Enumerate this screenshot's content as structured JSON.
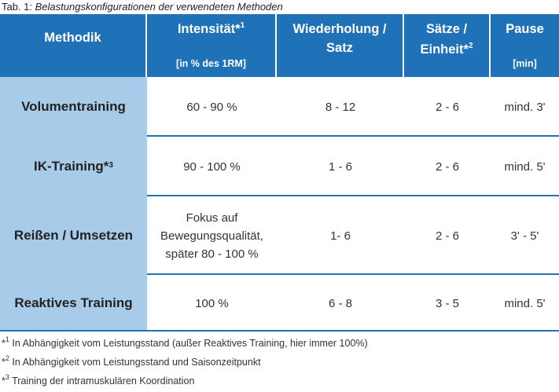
{
  "caption": {
    "prefix": "Tab. 1: ",
    "title": "Belastungskonfigurationen der verwendeten Methoden"
  },
  "header": {
    "col1": "Methodik",
    "col2": {
      "label": "Intensität*",
      "sup": "1",
      "sub": "[in % des 1RM]"
    },
    "col3": {
      "line1": "Wiederholung /",
      "line2": "Satz"
    },
    "col4": {
      "line1": "Sätze /",
      "line2": "Einheit*",
      "sup": "2"
    },
    "col5": {
      "label": "Pause",
      "sub": "[min]"
    }
  },
  "rows": [
    {
      "method": "Volumentraining",
      "intensity": "60 - 90 %",
      "reps": "8 - 12",
      "sets": "2 - 6",
      "pause": "mind. 3'"
    },
    {
      "method": "IK-Training*",
      "method_sup": "3",
      "intensity": "90 - 100 %",
      "reps": "1 - 6",
      "sets": "2 - 6",
      "pause": "mind. 5'"
    },
    {
      "method": "Reißen / Umsetzen",
      "intensity_lines": [
        "Fokus auf",
        "Bewegungsqualität,",
        "später 80 - 100 %"
      ],
      "reps": "1- 6",
      "sets": "2 - 6",
      "pause": "3' - 5'"
    },
    {
      "method": "Reaktives Training",
      "intensity": "100 %",
      "reps": "6 - 8",
      "sets": "3 - 5",
      "pause": "mind. 5'"
    }
  ],
  "footnotes": [
    {
      "mark": "*",
      "sup": "1",
      "text": " In Abhängigkeit vom Leistungsstand (außer Reaktives Training, hier immer 100%)"
    },
    {
      "mark": "*",
      "sup": "2",
      "text": " In Abhängigkeit vom Leistungsstand und Saisonzeitpunkt"
    },
    {
      "mark": "*",
      "sup": "3",
      "text": " Training der intramuskulären Koordination"
    }
  ],
  "colors": {
    "header_bg": "#1f71b8",
    "method_col_bg": "#a9cbea",
    "separator": "#1f71b8"
  }
}
